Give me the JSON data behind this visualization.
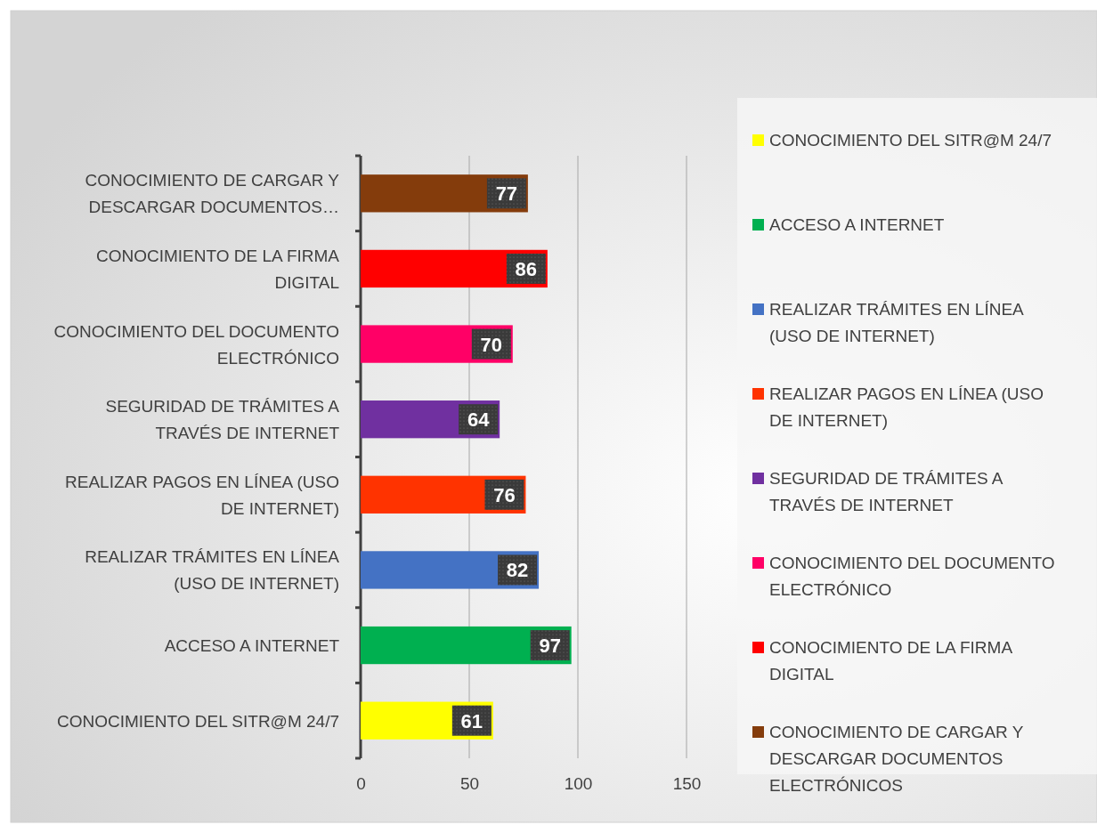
{
  "chart_data": {
    "type": "bar",
    "orientation": "horizontal",
    "categories": [
      "CONOCIMIENTO DE CARGAR Y DESCARGAR DOCUMENTOS…",
      "CONOCIMIENTO DE LA FIRMA DIGITAL",
      "CONOCIMIENTO DEL DOCUMENTO ELECTRÓNICO",
      "SEGURIDAD DE TRÁMITES A TRAVÉS DE INTERNET",
      "REALIZAR PAGOS EN LÍNEA (USO DE INTERNET)",
      "REALIZAR TRÁMITES EN LÍNEA (USO DE INTERNET)",
      "ACCESO A INTERNET",
      "CONOCIMIENTO DEL SITR@M 24/7"
    ],
    "series": [
      {
        "name": "CONOCIMIENTO DEL SITR@M 24/7",
        "color": "#ffff00",
        "values": [
          null,
          null,
          null,
          null,
          null,
          null,
          null,
          61
        ]
      },
      {
        "name": "ACCESO A INTERNET",
        "color": "#00b050",
        "values": [
          null,
          null,
          null,
          null,
          null,
          null,
          97,
          null
        ]
      },
      {
        "name": "REALIZAR TRÁMITES EN LÍNEA (USO DE INTERNET)",
        "color": "#4472c4",
        "values": [
          null,
          null,
          null,
          null,
          null,
          82,
          null,
          null
        ]
      },
      {
        "name": "REALIZAR PAGOS EN LÍNEA (USO DE INTERNET)",
        "color": "#ff3300",
        "values": [
          null,
          null,
          null,
          null,
          76,
          null,
          null,
          null
        ]
      },
      {
        "name": "SEGURIDAD DE TRÁMITES A TRAVÉS DE INTERNET",
        "color": "#7030a0",
        "values": [
          null,
          null,
          null,
          64,
          null,
          null,
          null,
          null
        ]
      },
      {
        "name": "CONOCIMIENTO DEL DOCUMENTO ELECTRÓNICO",
        "color": "#ff0066",
        "values": [
          null,
          null,
          70,
          null,
          null,
          null,
          null,
          null
        ]
      },
      {
        "name": "CONOCIMIENTO DE LA FIRMA DIGITAL",
        "color": "#ff0000",
        "values": [
          null,
          86,
          null,
          null,
          null,
          null,
          null,
          null
        ]
      },
      {
        "name": "CONOCIMIENTO DE CARGAR Y DESCARGAR DOCUMENTOS ELECTRÓNICOS",
        "color": "#843c0c",
        "values": [
          77,
          null,
          null,
          null,
          null,
          null,
          null,
          null
        ]
      }
    ],
    "xlim": [
      0,
      150
    ],
    "xticks": [
      0,
      50,
      100,
      150
    ],
    "grid": "x",
    "legend": "right",
    "data_labels": true
  }
}
